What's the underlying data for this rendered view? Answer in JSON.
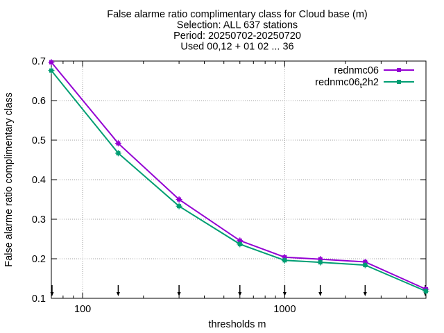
{
  "chart_data": {
    "type": "line",
    "title_lines": [
      "False alarme ratio complimentary class  for Cloud base (m)",
      "Selection: ALL    637 stations",
      "Period: 20250702-20250720",
      "Used 00,12 + 01 02 ... 36"
    ],
    "xlabel": "thresholds m",
    "ylabel": "False alarme ratio complimentary class",
    "xscale": "log",
    "xlim": [
      70,
      5000
    ],
    "ylim": [
      0.1,
      0.7
    ],
    "xticks": [
      100,
      1000
    ],
    "xtick_labels": [
      "100",
      "1000"
    ],
    "yticks": [
      0.1,
      0.2,
      0.3,
      0.4,
      0.5,
      0.6,
      0.7
    ],
    "ytick_labels": [
      "0.1",
      "0.2",
      "0.3",
      "0.4",
      "0.5",
      "0.6",
      "0.7"
    ],
    "grid": true,
    "legend_position": "top-right",
    "x": [
      70,
      150,
      300,
      600,
      1000,
      1500,
      2500,
      5000
    ],
    "series": [
      {
        "name": "rednmc06",
        "color": "#9400d3",
        "values": [
          0.697,
          0.492,
          0.35,
          0.246,
          0.204,
          0.199,
          0.192,
          0.123
        ]
      },
      {
        "name": "rednmc06_t2h2",
        "legend_base": "rednmc06",
        "legend_sub": "t",
        "legend_tail": "2h2",
        "color": "#009e73",
        "values": [
          0.676,
          0.467,
          0.333,
          0.237,
          0.196,
          0.191,
          0.184,
          0.118
        ]
      }
    ],
    "arrow_markers_x": [
      70,
      150,
      300,
      600,
      1000,
      1500,
      2500,
      5000
    ]
  }
}
